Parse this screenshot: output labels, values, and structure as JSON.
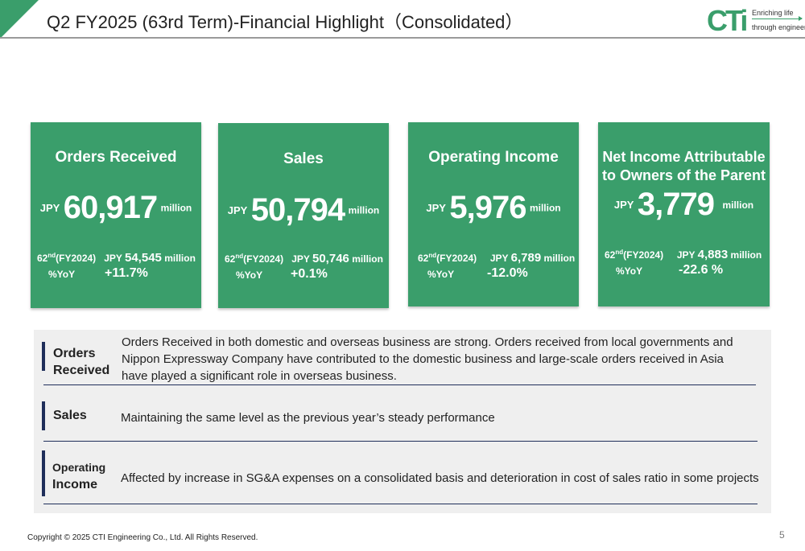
{
  "header": {
    "title": "Q2 FY2025 (63rd Term)-Financial Highlight（Consolidated）",
    "logo": {
      "mark": "CTi",
      "line1": "Enriching life",
      "line2": "through engineering"
    }
  },
  "colors": {
    "accent": "#3a9e6b",
    "navy": "#1f2e5a",
    "panel": "#efefef"
  },
  "cards": [
    {
      "title": "Orders Received",
      "currency": "JPY",
      "value": "60,917",
      "unit": "million",
      "prev_label": "62",
      "prev_sup": "nd",
      "prev_period": "(FY2024)",
      "prev_currency": "JPY",
      "prev_value": "54,545",
      "prev_unit": "million",
      "yoy_label": "%YoY",
      "yoy_value": "+11.7%"
    },
    {
      "title": "Sales",
      "currency": "JPY",
      "value": "50,794",
      "unit": "million",
      "prev_label": "62",
      "prev_sup": "nd",
      "prev_period": "(FY2024)",
      "prev_currency": "JPY",
      "prev_value": "50,746",
      "prev_unit": "million",
      "yoy_label": "%YoY",
      "yoy_value": "+0.1%"
    },
    {
      "title": "Operating Income",
      "currency": "JPY",
      "value": "5,976",
      "unit": "million",
      "prev_label": "62",
      "prev_sup": "nd",
      "prev_period": "(FY2024)",
      "prev_currency": "JPY",
      "prev_value": "6,789",
      "prev_unit": "million",
      "yoy_label": "%YoY",
      "yoy_value": "-12.0%"
    },
    {
      "title_line1": "Net Income Attributable",
      "title_line2": "to Owners of the Parent",
      "currency": "JPY",
      "value": "3,779",
      "unit": "million",
      "prev_label": "62",
      "prev_sup": "nd",
      "prev_period": "(FY2024)",
      "prev_currency": "JPY",
      "prev_value": "4,883",
      "prev_unit": "million",
      "yoy_label": "%YoY",
      "yoy_value": "-22.6 %"
    }
  ],
  "comments": [
    {
      "label_line1": "Orders",
      "label_line2": "Received",
      "text": "Orders Received in both domestic and overseas business are strong. Orders received from local governments and Nippon Expressway Company have contributed to the domestic business and large-scale orders received in Asia have played a significant role in overseas business."
    },
    {
      "label_line1": "Sales",
      "text": "Maintaining the same level as the previous year’s steady performance"
    },
    {
      "label_line1": "Operating",
      "label_line2": "Income",
      "text": "Affected by increase in SG&A expenses on a consolidated basis and deterioration in cost of sales ratio in some projects"
    }
  ],
  "footer": {
    "copyright": "Copyright © 2025 CTI Engineering Co., Ltd. All Rights Reserved.",
    "page_number": "5"
  }
}
